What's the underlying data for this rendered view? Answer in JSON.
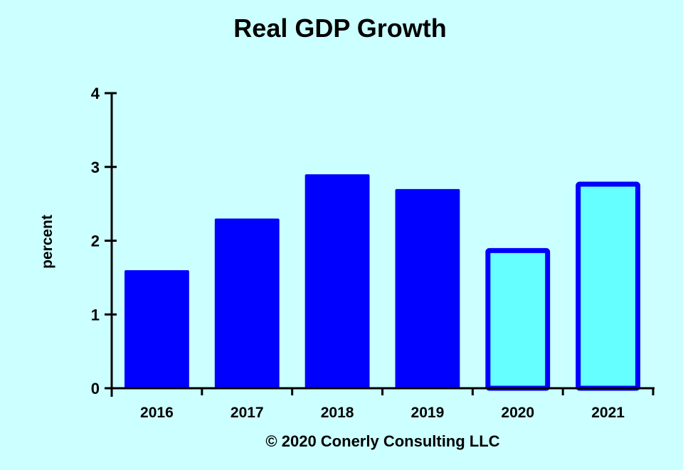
{
  "chart_data": {
    "type": "bar",
    "title": "Real GDP Growth",
    "xlabel": "",
    "ylabel": "percent",
    "ylim": [
      0,
      4
    ],
    "yticks": [
      "0",
      "1",
      "2",
      "3",
      "4"
    ],
    "categories": [
      "2016",
      "2017",
      "2018",
      "2019",
      "2020",
      "2021"
    ],
    "values": [
      1.6,
      2.3,
      2.9,
      2.7,
      1.9,
      2.8
    ],
    "bar_styles": [
      "actual",
      "actual",
      "actual",
      "actual",
      "forecast",
      "forecast"
    ],
    "grid": false,
    "footer": "© 2020 Conerly Consulting  LLC",
    "colors": {
      "background": "#ccffff",
      "actual": "#0000ff",
      "forecast_fill": "#66ffff",
      "forecast_stroke": "#0000ff"
    }
  }
}
